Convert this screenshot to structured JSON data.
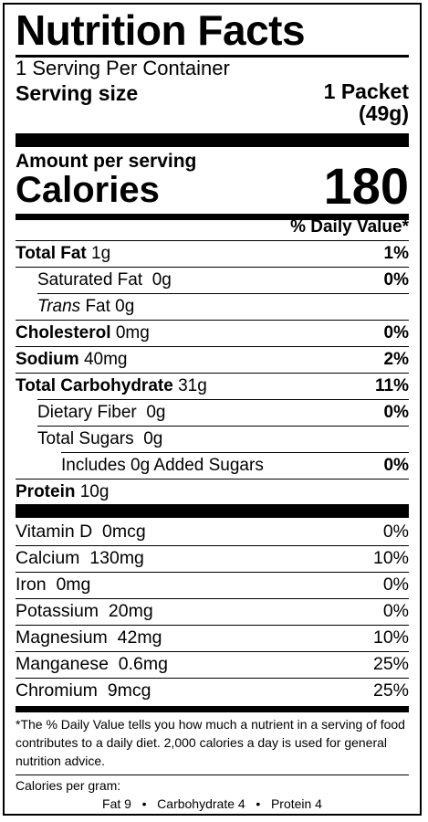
{
  "title": "Nutrition Facts",
  "servings_per_container": "1 Serving Per Container",
  "serving_size_label": "Serving size",
  "serving_size_value_line1": "1 Packet",
  "serving_size_value_line2": "(49g)",
  "amount_per_serving": "Amount per serving",
  "calories_label": "Calories",
  "calories_value": "180",
  "daily_value_header": "% Daily Value*",
  "nutrients": [
    {
      "name": "Total Fat",
      "amount": "1g",
      "dv": "1%"
    },
    {
      "name": "Saturated Fat",
      "amount": "0g",
      "dv": "0%"
    },
    {
      "name": "Trans",
      "amount": "Fat 0g",
      "dv": ""
    },
    {
      "name": "Cholesterol",
      "amount": "0mg",
      "dv": "0%"
    },
    {
      "name": "Sodium",
      "amount": "40mg",
      "dv": "2%"
    },
    {
      "name": "Total Carbohydrate",
      "amount": "31g",
      "dv": "11%"
    },
    {
      "name": "Dietary Fiber",
      "amount": "0g",
      "dv": "0%"
    },
    {
      "name": "Total Sugars",
      "amount": "0g",
      "dv": ""
    },
    {
      "name": "Includes 0g Added Sugars",
      "amount": "",
      "dv": "0%"
    },
    {
      "name": "Protein",
      "amount": "10g",
      "dv": ""
    }
  ],
  "vitamins": [
    {
      "name": "Vitamin D",
      "amount": "0mcg",
      "dv": "0%"
    },
    {
      "name": "Calcium",
      "amount": "130mg",
      "dv": "10%"
    },
    {
      "name": "Iron",
      "amount": "0mg",
      "dv": "0%"
    },
    {
      "name": "Potassium",
      "amount": "20mg",
      "dv": "0%"
    },
    {
      "name": "Magnesium",
      "amount": "42mg",
      "dv": "10%"
    },
    {
      "name": "Manganese",
      "amount": "0.6mg",
      "dv": "25%"
    },
    {
      "name": "Chromium",
      "amount": "9mcg",
      "dv": "25%"
    }
  ],
  "footnote": "*The % Daily Value tells you how much a nutrient in a serving of food contributes to a daily diet. 2,000 calories a day is used for general nutrition advice.",
  "calories_per_gram_label": "Calories per gram:",
  "calories_per_gram": {
    "fat": "Fat 9",
    "carbohydrate": "Carbohydrate 4",
    "protein": "Protein 4",
    "separator": "•"
  }
}
